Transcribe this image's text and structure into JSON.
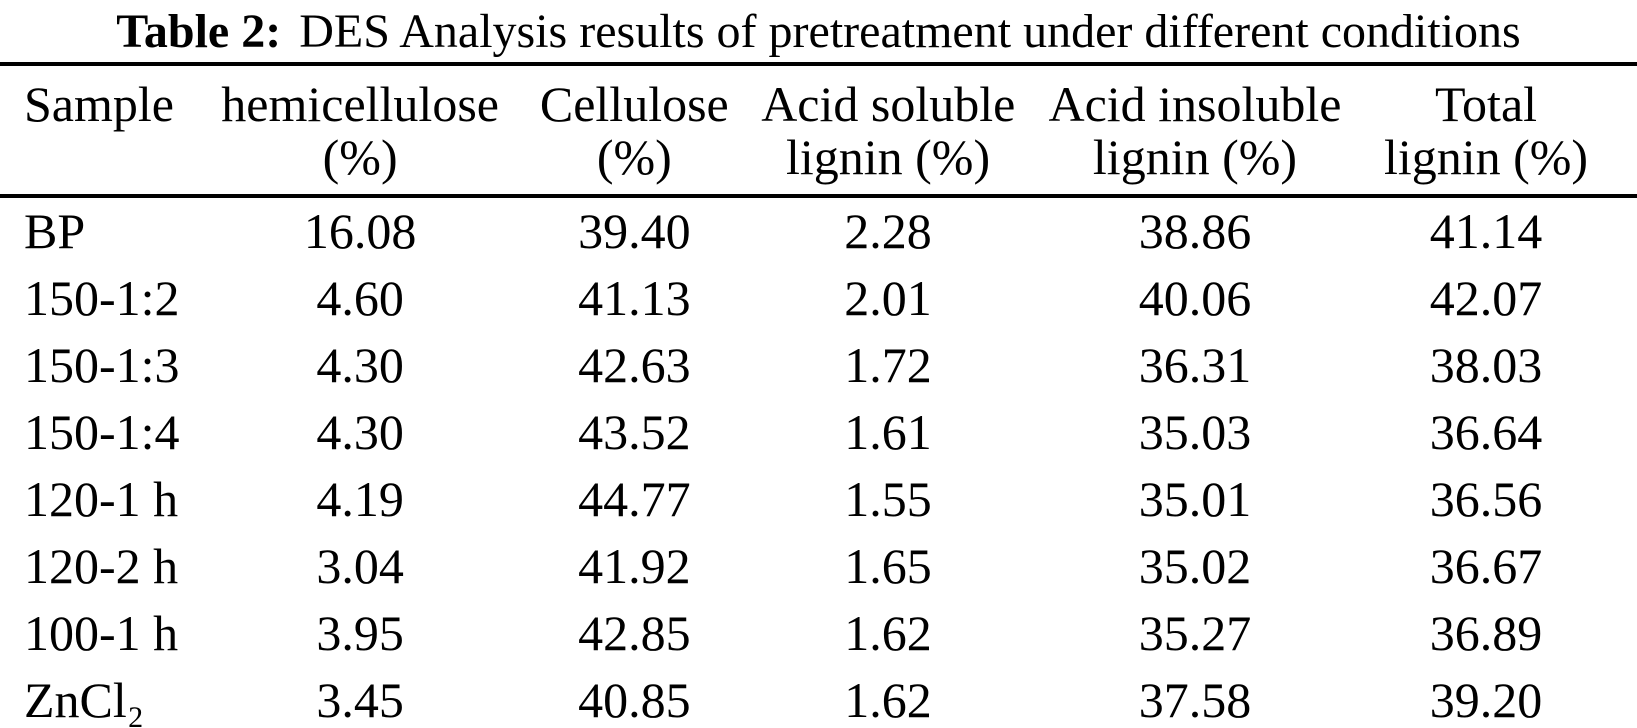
{
  "caption": {
    "label": "Table 2:",
    "text": "DES Analysis results of pretreatment under different conditions"
  },
  "table": {
    "columns": [
      {
        "id": "sample",
        "line1": "Sample",
        "line2": ""
      },
      {
        "id": "hemicellulose",
        "line1": "hemicellulose",
        "line2": "(%)"
      },
      {
        "id": "cellulose",
        "line1": "Cellulose",
        "line2": "(%)"
      },
      {
        "id": "acid-soluble-lignin",
        "line1": "Acid soluble",
        "line2": "lignin (%)"
      },
      {
        "id": "acid-insoluble-lignin",
        "line1": "Acid insoluble",
        "line2": "lignin (%)"
      },
      {
        "id": "total-lignin",
        "line1": "Total",
        "line2": "lignin (%)"
      }
    ],
    "rows": [
      {
        "sample": "BP",
        "values": [
          "16.08",
          "39.40",
          "2.28",
          "38.86",
          "41.14"
        ]
      },
      {
        "sample": "150-1:2",
        "values": [
          "4.60",
          "41.13",
          "2.01",
          "40.06",
          "42.07"
        ]
      },
      {
        "sample": "150-1:3",
        "values": [
          "4.30",
          "42.63",
          "1.72",
          "36.31",
          "38.03"
        ]
      },
      {
        "sample": "150-1:4",
        "values": [
          "4.30",
          "43.52",
          "1.61",
          "35.03",
          "36.64"
        ]
      },
      {
        "sample": "120-1 h",
        "values": [
          "4.19",
          "44.77",
          "1.55",
          "35.01",
          "36.56"
        ]
      },
      {
        "sample": "120-2 h",
        "values": [
          "3.04",
          "41.92",
          "1.65",
          "35.02",
          "36.67"
        ]
      },
      {
        "sample": "100-1 h",
        "values": [
          "3.95",
          "42.85",
          "1.62",
          "35.27",
          "36.89"
        ]
      },
      {
        "sample": "ZnCl₂",
        "values": [
          "3.45",
          "40.85",
          "1.62",
          "37.58",
          "39.20"
        ]
      }
    ]
  },
  "chart_data": {
    "type": "table",
    "title": "Table 2: DES Analysis results of pretreatment under different conditions",
    "columns": [
      "Sample",
      "hemicellulose (%)",
      "Cellulose (%)",
      "Acid soluble lignin (%)",
      "Acid insoluble lignin (%)",
      "Total lignin (%)"
    ],
    "rows": [
      [
        "BP",
        16.08,
        39.4,
        2.28,
        38.86,
        41.14
      ],
      [
        "150-1:2",
        4.6,
        41.13,
        2.01,
        40.06,
        42.07
      ],
      [
        "150-1:3",
        4.3,
        42.63,
        1.72,
        36.31,
        38.03
      ],
      [
        "150-1:4",
        4.3,
        43.52,
        1.61,
        35.03,
        36.64
      ],
      [
        "120-1 h",
        4.19,
        44.77,
        1.55,
        35.01,
        36.56
      ],
      [
        "120-2 h",
        3.04,
        41.92,
        1.65,
        35.02,
        36.67
      ],
      [
        "100-1 h",
        3.95,
        42.85,
        1.62,
        35.27,
        36.89
      ],
      [
        "ZnCl₂",
        3.45,
        40.85,
        1.62,
        37.58,
        39.2
      ]
    ]
  },
  "colors": {
    "background": "#ffffff",
    "text": "#000000",
    "rule": "#000000"
  }
}
